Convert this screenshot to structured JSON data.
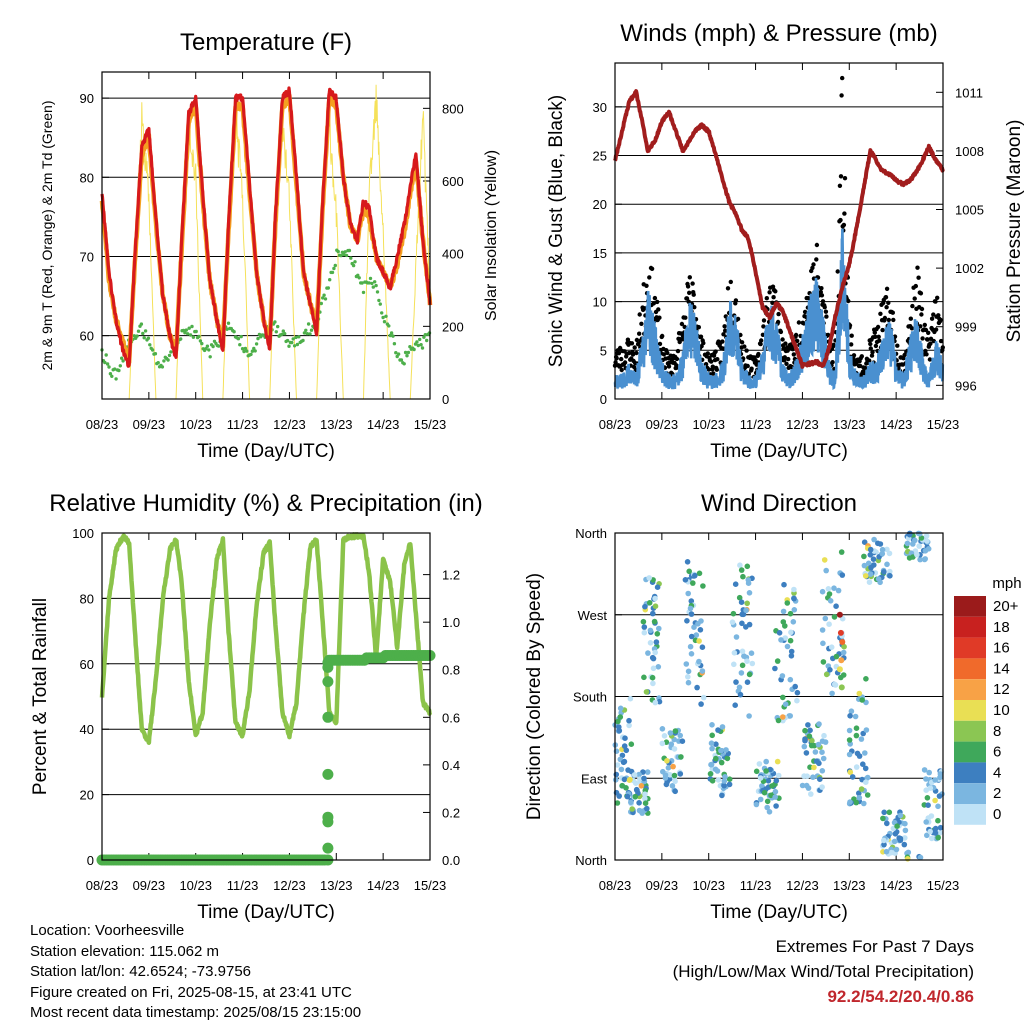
{
  "footer": {
    "location": "Location: Voorheesville",
    "elevation": "Station elevation: 115.062 m",
    "latlon": "Station lat/lon: 42.6524; -73.9756",
    "created": "Figure created on Fri, 2025-08-15, at 23:41 UTC",
    "recent": "Most recent data timestamp: 2025/08/15 23:15:00"
  },
  "extremes": {
    "title": "Extremes For Past 7 Days",
    "subtitle": "(High/Low/Max Wind/Total Precipitation)",
    "values": "92.2/54.2/20.4/0.86"
  },
  "colors": {
    "temp2m": "#d7191c",
    "temp9m": "#f4a020",
    "dewpoint": "#4daf4a",
    "solar": "#f5e15a",
    "wind": "#4a90d0",
    "gust": "#000000",
    "pressure": "#a11d1d",
    "rh": "#8bc34a",
    "precip": "#4daf4a"
  },
  "chart_data": [
    {
      "type": "line",
      "title": "Temperature (F)",
      "xlabel": "Time (Day/UTC)",
      "ylabel": "2m & 9m T (Red, Orange) & 2m Td (Green)",
      "y2label": "Solar Insolation (Yellow)",
      "x_ticks": [
        "08/23",
        "09/23",
        "10/23",
        "11/23",
        "12/23",
        "13/23",
        "14/23",
        "15/23"
      ],
      "y_ticks": [
        "60",
        "70",
        "80",
        "90"
      ],
      "y2_ticks": [
        "0",
        "200",
        "400",
        "600",
        "800"
      ],
      "ylim": [
        52,
        93.3
      ],
      "y2lim": [
        0,
        900
      ],
      "grid": true,
      "x_days": [
        0.0,
        0.15,
        0.3,
        0.45,
        0.58,
        0.7,
        0.85,
        1.0,
        1.15,
        1.3,
        1.45,
        1.58,
        1.7,
        1.85,
        2.0,
        2.15,
        2.3,
        2.45,
        2.58,
        2.7,
        2.85,
        3.0,
        3.15,
        3.3,
        3.45,
        3.58,
        3.7,
        3.85,
        4.0,
        4.15,
        4.3,
        4.45,
        4.58,
        4.7,
        4.85,
        5.0,
        5.15,
        5.3,
        5.45,
        5.58,
        5.7,
        5.85,
        6.0,
        6.15,
        6.3,
        6.45,
        6.58,
        6.7,
        6.85,
        7.0
      ],
      "series": [
        {
          "name": "2m T",
          "values": [
            78,
            68,
            62,
            58,
            56,
            70,
            84,
            86,
            75,
            65,
            60,
            57,
            72,
            88,
            90,
            78,
            67,
            62,
            58,
            74,
            90,
            90,
            79,
            68,
            62,
            58,
            75,
            90,
            91,
            80,
            68,
            64,
            60,
            76,
            91,
            90,
            80,
            74,
            72,
            77,
            76,
            70,
            68,
            66,
            70,
            74,
            79,
            83,
            72,
            64
          ]
        },
        {
          "name": "9m T",
          "values": [
            77,
            67,
            62,
            59,
            57,
            69,
            83,
            85,
            74,
            65,
            60,
            58,
            71,
            87,
            89,
            77,
            67,
            62,
            59,
            73,
            89,
            89,
            78,
            68,
            62,
            59,
            74,
            89,
            90,
            79,
            68,
            64,
            61,
            75,
            90,
            89,
            80,
            74,
            72,
            76,
            75,
            70,
            68,
            66,
            69,
            73,
            78,
            82,
            72,
            64
          ]
        },
        {
          "name": "2m Td",
          "values": [
            58,
            56,
            55,
            57,
            59,
            60,
            61,
            59,
            57,
            56,
            58,
            59,
            60,
            61,
            60,
            59,
            58,
            59,
            60,
            61,
            60,
            59,
            58,
            59,
            60,
            61,
            61,
            60,
            59,
            59,
            60,
            61,
            61,
            64,
            67,
            70,
            71,
            70,
            68,
            66,
            67,
            66,
            63,
            60,
            58,
            57,
            58,
            59,
            59,
            60
          ]
        },
        {
          "name": "Solar Insolation",
          "values": [
            0,
            0,
            0,
            0,
            0,
            400,
            820,
            600,
            0,
            0,
            0,
            0,
            500,
            830,
            650,
            0,
            0,
            0,
            0,
            500,
            840,
            600,
            0,
            0,
            0,
            0,
            500,
            850,
            580,
            0,
            0,
            0,
            0,
            480,
            830,
            550,
            0,
            0,
            0,
            0,
            600,
            880,
            500,
            0,
            0,
            0,
            0,
            400,
            840,
            300
          ]
        }
      ]
    },
    {
      "type": "line",
      "title": "Winds (mph) & Pressure (mb)",
      "xlabel": "Time (Day/UTC)",
      "ylabel": "Sonic Wind & Gust (Blue, Black)",
      "y2label": "Station Pressure (Maroon)",
      "x_ticks": [
        "08/23",
        "09/23",
        "10/23",
        "11/23",
        "12/23",
        "13/23",
        "14/23",
        "15/23"
      ],
      "y_ticks": [
        "0",
        "5",
        "10",
        "15",
        "20",
        "25",
        "30"
      ],
      "y2_ticks": [
        "996",
        "999",
        "1002",
        "1005",
        "1008",
        "1011"
      ],
      "ylim": [
        0,
        34.5
      ],
      "y2lim": [
        995.3,
        1012.5
      ],
      "grid": true,
      "x_days": [
        0.0,
        0.15,
        0.3,
        0.45,
        0.58,
        0.7,
        0.85,
        1.0,
        1.15,
        1.3,
        1.45,
        1.58,
        1.7,
        1.85,
        2.0,
        2.15,
        2.3,
        2.45,
        2.58,
        2.7,
        2.85,
        3.0,
        3.15,
        3.3,
        3.45,
        3.58,
        3.7,
        3.85,
        4.0,
        4.15,
        4.3,
        4.45,
        4.58,
        4.7,
        4.85,
        5.0,
        5.15,
        5.3,
        5.45,
        5.58,
        5.7,
        5.85,
        6.0,
        6.15,
        6.3,
        6.45,
        6.58,
        6.7,
        6.85,
        7.0
      ],
      "series": [
        {
          "name": "Sonic Wind",
          "values": [
            2,
            2,
            3,
            2,
            5,
            9,
            6,
            3,
            2,
            2,
            4,
            8,
            7,
            3,
            2,
            2,
            3,
            8,
            7,
            3,
            2,
            2,
            4,
            8,
            7,
            3,
            2,
            3,
            5,
            8,
            10,
            7,
            3,
            2,
            15,
            4,
            2,
            2,
            3,
            3,
            5,
            7,
            3,
            2,
            5,
            7,
            3,
            2,
            5,
            3
          ]
        },
        {
          "name": "Gust",
          "values": [
            5,
            5,
            6,
            5,
            10,
            14,
            11,
            6,
            4,
            5,
            8,
            12,
            11,
            6,
            4,
            5,
            6,
            13,
            11,
            6,
            4,
            4,
            7,
            12,
            11,
            6,
            5,
            6,
            9,
            12,
            15,
            11,
            6,
            5,
            32,
            8,
            4,
            4,
            6,
            7,
            9,
            11,
            6,
            4,
            8,
            13,
            8,
            6,
            11,
            6
          ]
        },
        {
          "name": "Station Pressure",
          "values": [
            1007.5,
            1009.0,
            1010.5,
            1011.0,
            1009.5,
            1008.0,
            1008.5,
            1009.5,
            1010.0,
            1009.0,
            1008.0,
            1008.5,
            1009.0,
            1009.3,
            1009.0,
            1007.8,
            1006.5,
            1005.3,
            1004.8,
            1004.0,
            1003.5,
            1001.8,
            1000.0,
            999.5,
            1000.2,
            999.8,
            999.0,
            998.0,
            997.0,
            997.1,
            997.2,
            997.0,
            998.0,
            999.5,
            1001.0,
            1002.2,
            1004.0,
            1006.0,
            1008.0,
            1007.5,
            1007.0,
            1006.8,
            1006.5,
            1006.3,
            1006.5,
            1007.0,
            1007.6,
            1008.2,
            1007.5,
            1007.0
          ]
        }
      ]
    },
    {
      "type": "line",
      "title": "Relative Humidity (%) & Precipitation (in)",
      "xlabel": "Time (Day/UTC)",
      "ylabel": "Percent & Total Rainfall",
      "x_ticks": [
        "08/23",
        "09/23",
        "10/23",
        "11/23",
        "12/23",
        "13/23",
        "14/23",
        "15/23"
      ],
      "y_ticks": [
        "0",
        "20",
        "40",
        "60",
        "80",
        "100"
      ],
      "y2_ticks": [
        "0.0",
        "0.2",
        "0.4",
        "0.6",
        "0.8",
        "1.0",
        "1.2"
      ],
      "ylim": [
        0,
        100
      ],
      "y2lim": [
        0,
        1.375
      ],
      "grid": true,
      "x_days": [
        0.0,
        0.15,
        0.3,
        0.45,
        0.58,
        0.7,
        0.85,
        1.0,
        1.15,
        1.3,
        1.45,
        1.58,
        1.7,
        1.85,
        2.0,
        2.15,
        2.3,
        2.45,
        2.58,
        2.7,
        2.85,
        3.0,
        3.15,
        3.3,
        3.45,
        3.58,
        3.7,
        3.85,
        4.0,
        4.15,
        4.3,
        4.45,
        4.58,
        4.7,
        4.85,
        5.0,
        5.15,
        5.3,
        5.45,
        5.58,
        5.7,
        5.85,
        6.0,
        6.15,
        6.3,
        6.45,
        6.58,
        6.7,
        6.85,
        7.0
      ],
      "series": [
        {
          "name": "Relative Humidity",
          "values": [
            50,
            80,
            95,
            99,
            97,
            70,
            40,
            36,
            55,
            80,
            95,
            98,
            85,
            55,
            38,
            45,
            72,
            92,
            98,
            70,
            42,
            38,
            52,
            78,
            94,
            97,
            72,
            45,
            38,
            48,
            75,
            96,
            98,
            75,
            45,
            42,
            98,
            99,
            99,
            99,
            88,
            62,
            92,
            85,
            65,
            90,
            97,
            75,
            48,
            45
          ]
        },
        {
          "name": "Total Rainfall",
          "values": [
            0,
            0,
            0,
            0,
            0,
            0,
            0,
            0,
            0,
            0,
            0,
            0,
            0,
            0,
            0,
            0,
            0,
            0,
            0,
            0,
            0,
            0,
            0,
            0,
            0,
            0,
            0,
            0,
            0,
            0,
            0,
            0,
            0,
            0,
            0.84,
            0.84,
            0.85,
            0.85,
            0.85,
            0.85,
            0.85,
            0.85,
            0.86,
            0.86,
            0.86,
            0.86,
            0.86,
            0.86,
            0.86,
            0.86
          ]
        }
      ]
    },
    {
      "type": "scatter",
      "title": "Wind Direction",
      "xlabel": "Time (Day/UTC)",
      "ylabel": "Direction (Colored By Speed)",
      "x_ticks": [
        "08/23",
        "09/23",
        "10/23",
        "11/23",
        "12/23",
        "13/23",
        "14/23",
        "15/23"
      ],
      "y_ticks": [
        "North",
        "East",
        "South",
        "West",
        "North"
      ],
      "ylim": [
        0,
        360
      ],
      "grid": true,
      "legend_title": "mph",
      "legend_labels": [
        "20+",
        "18",
        "16",
        "14",
        "12",
        "10",
        "8",
        "6",
        "4",
        "2",
        "0"
      ],
      "legend_colors": [
        "#9b1b1b",
        "#c8211f",
        "#e03a27",
        "#f06a2b",
        "#f8a246",
        "#e9df54",
        "#8bc653",
        "#3fa85b",
        "#3d7fc0",
        "#7bb6e0",
        "#bfe2f6"
      ]
    }
  ]
}
